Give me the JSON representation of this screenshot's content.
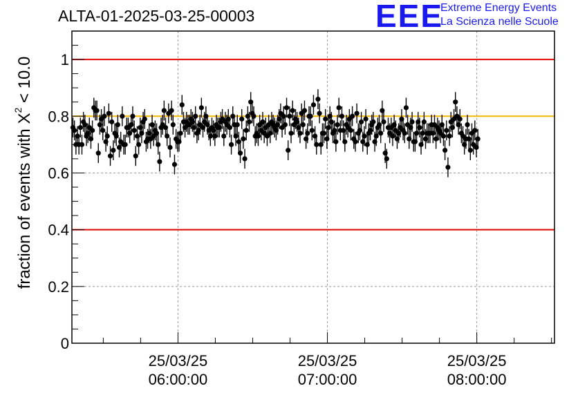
{
  "logo": {
    "letters": "EEE",
    "line1": "Extreme Energy Events",
    "line2": "La Scienza nelle Scuole"
  },
  "chart_data": {
    "type": "scatter",
    "title": "ALTA-01-2025-03-25-00003",
    "ylabel_main": "fraction of events with X",
    "ylabel_sup": "2",
    "ylabel_tail": " < 10.0",
    "xlabel": "",
    "ylim": [
      0,
      1.1
    ],
    "yticks": [
      0,
      0.2,
      0.4,
      0.6,
      0.8,
      1
    ],
    "ytick_labels": [
      "0",
      "0.2",
      "0.4",
      "0.6",
      "0.8",
      "1"
    ],
    "xlim_hours": [
      5.29,
      8.52
    ],
    "xticks_hours": [
      6,
      7,
      8
    ],
    "xtick_labels": [
      {
        "date": "25/03/25",
        "time": "06:00:00"
      },
      {
        "date": "25/03/25",
        "time": "07:00:00"
      },
      {
        "date": "25/03/25",
        "time": "08:00:00"
      }
    ],
    "reference_lines": [
      {
        "y": 1.0,
        "color": "#e00000"
      },
      {
        "y": 0.4,
        "color": "#e00000"
      },
      {
        "y": 0.8,
        "color": "#f5b800"
      }
    ],
    "grid": true,
    "marker_color": "#000000",
    "series": [
      {
        "name": "fraction",
        "x_start_hours": 5.297,
        "x_step_hours": 0.01,
        "error": 0.035,
        "values": [
          0.76,
          0.75,
          0.7,
          0.73,
          0.7,
          0.76,
          0.7,
          0.78,
          0.77,
          0.73,
          0.74,
          0.76,
          0.72,
          0.75,
          0.83,
          0.82,
          0.82,
          0.67,
          0.77,
          0.79,
          0.75,
          0.8,
          0.71,
          0.73,
          0.81,
          0.66,
          0.78,
          0.68,
          0.74,
          0.73,
          0.77,
          0.69,
          0.71,
          0.8,
          0.7,
          0.7,
          0.76,
          0.76,
          0.74,
          0.77,
          0.8,
          0.75,
          0.66,
          0.73,
          0.7,
          0.76,
          0.74,
          0.78,
          0.79,
          0.71,
          0.72,
          0.74,
          0.72,
          0.77,
          0.73,
          0.75,
          0.74,
          0.7,
          0.64,
          0.76,
          0.77,
          0.82,
          0.76,
          0.73,
          0.81,
          0.69,
          0.82,
          0.77,
          0.63,
          0.72,
          0.71,
          0.71,
          0.74,
          0.84,
          0.78,
          0.76,
          0.78,
          0.77,
          0.77,
          0.79,
          0.78,
          0.76,
          0.8,
          0.74,
          0.75,
          0.77,
          0.83,
          0.76,
          0.78,
          0.8,
          0.77,
          0.75,
          0.73,
          0.76,
          0.75,
          0.73,
          0.77,
          0.76,
          0.76,
          0.78,
          0.79,
          0.73,
          0.78,
          0.77,
          0.79,
          0.76,
          0.7,
          0.8,
          0.77,
          0.73,
          0.77,
          0.71,
          0.67,
          0.79,
          0.72,
          0.65,
          0.75,
          0.8,
          0.78,
          0.85,
          0.81,
          0.8,
          0.73,
          0.74,
          0.73,
          0.77,
          0.75,
          0.78,
          0.74,
          0.76,
          0.73,
          0.77,
          0.74,
          0.78,
          0.77,
          0.76,
          0.75,
          0.77,
          0.79,
          0.81,
          0.76,
          0.8,
          0.77,
          0.83,
          0.68,
          0.8,
          0.74,
          0.82,
          0.77,
          0.79,
          0.78,
          0.76,
          0.74,
          0.81,
          0.77,
          0.82,
          0.72,
          0.74,
          0.8,
          0.8,
          0.75,
          0.84,
          0.73,
          0.7,
          0.86,
          0.81,
          0.7,
          0.74,
          0.74,
          0.79,
          0.72,
          0.76,
          0.8,
          0.78,
          0.74,
          0.75,
          0.71,
          0.77,
          0.83,
          0.75,
          0.8,
          0.75,
          0.71,
          0.77,
          0.76,
          0.79,
          0.75,
          0.8,
          0.72,
          0.71,
          0.81,
          0.74,
          0.75,
          0.78,
          0.71,
          0.73,
          0.79,
          0.7,
          0.74,
          0.75,
          0.77,
          0.78,
          0.71,
          0.73,
          0.76,
          0.77,
          0.74,
          0.82,
          0.78,
          0.67,
          0.65,
          0.76,
          0.74,
          0.76,
          0.73,
          0.77,
          0.75,
          0.72,
          0.74,
          0.76,
          0.79,
          0.75,
          0.74,
          0.83,
          0.77,
          0.72,
          0.76,
          0.78,
          0.71,
          0.71,
          0.74,
          0.78,
          0.76,
          0.7,
          0.74,
          0.78,
          0.72,
          0.74,
          0.74,
          0.74,
          0.77,
          0.74,
          0.77,
          0.72,
          0.76,
          0.75,
          0.74,
          0.77,
          0.73,
          0.68,
          0.75,
          0.62,
          0.73,
          0.78,
          0.76,
          0.79,
          0.85,
          0.8,
          0.77,
          0.79,
          0.74,
          0.73,
          0.7,
          0.72,
          0.77,
          0.72,
          0.68,
          0.74,
          0.7,
          0.75,
          0.69,
          0.72
        ]
      }
    ]
  }
}
